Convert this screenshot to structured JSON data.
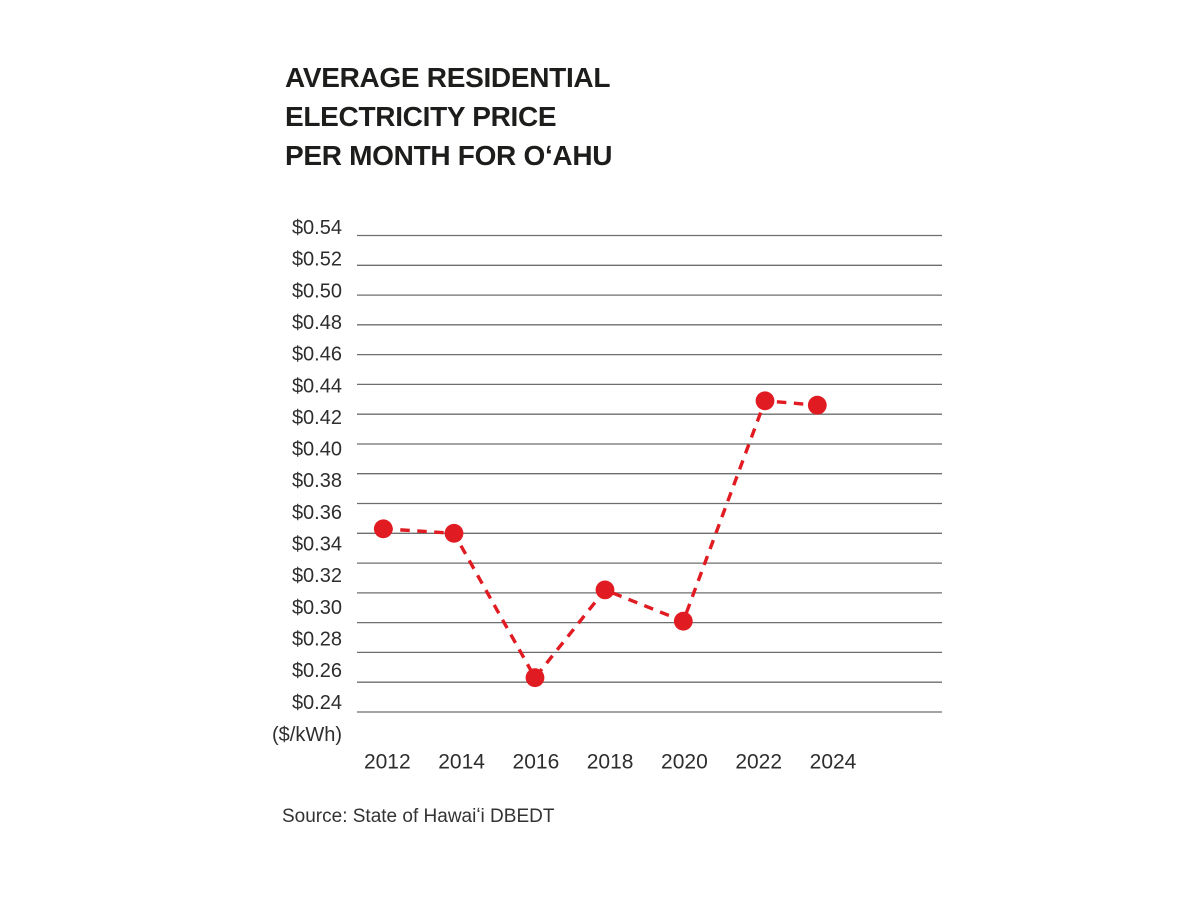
{
  "figure": {
    "title_lines": [
      "AVERAGE RESIDENTIAL",
      "ELECTRICITY PRICE",
      "PER MONTH FOR OʻAHU"
    ],
    "unit_label": "($/kWh)",
    "source": "Source: State of Hawaiʻi DBEDT"
  },
  "colors": {
    "accent_red": "#e11b22",
    "gridline_gray": "#6e6e6e",
    "title_black": "#1d1d1b",
    "axis_text": "#2e2e2e"
  },
  "chart_data": {
    "type": "line",
    "title": "AVERAGE RESIDENTIAL ELECTRICITY PRICE PER MONTH FOR OʻAHU",
    "x": [
      2012,
      2014,
      2016,
      2018,
      2020,
      2022,
      2024
    ],
    "x_tick_labels": [
      "2012",
      "2014",
      "2016",
      "2018",
      "2020",
      "2022",
      "2024"
    ],
    "series": [
      {
        "name": "Average residential electricity price",
        "values": [
          0.343,
          0.34,
          0.243,
          0.302,
          0.281,
          0.429,
          0.426
        ]
      }
    ],
    "ylabel": "($/kWh)",
    "ylim": [
      0.22,
      0.54
    ],
    "ytick_step": 0.02,
    "ytick_labels": [
      "$0.54",
      "$0.52",
      "$0.50",
      "$0.48",
      "$0.46",
      "$0.44",
      "$0.42",
      "$0.40",
      "$0.38",
      "$0.36",
      "$0.34",
      "$0.32",
      "$0.30",
      "$0.28",
      "$0.26",
      "$0.24"
    ],
    "grid": true,
    "legend": "none",
    "line_style": "dashed",
    "marker": "circle",
    "line_color": "#e11b22",
    "source": "Source: State of Hawaiʻi DBEDT"
  }
}
